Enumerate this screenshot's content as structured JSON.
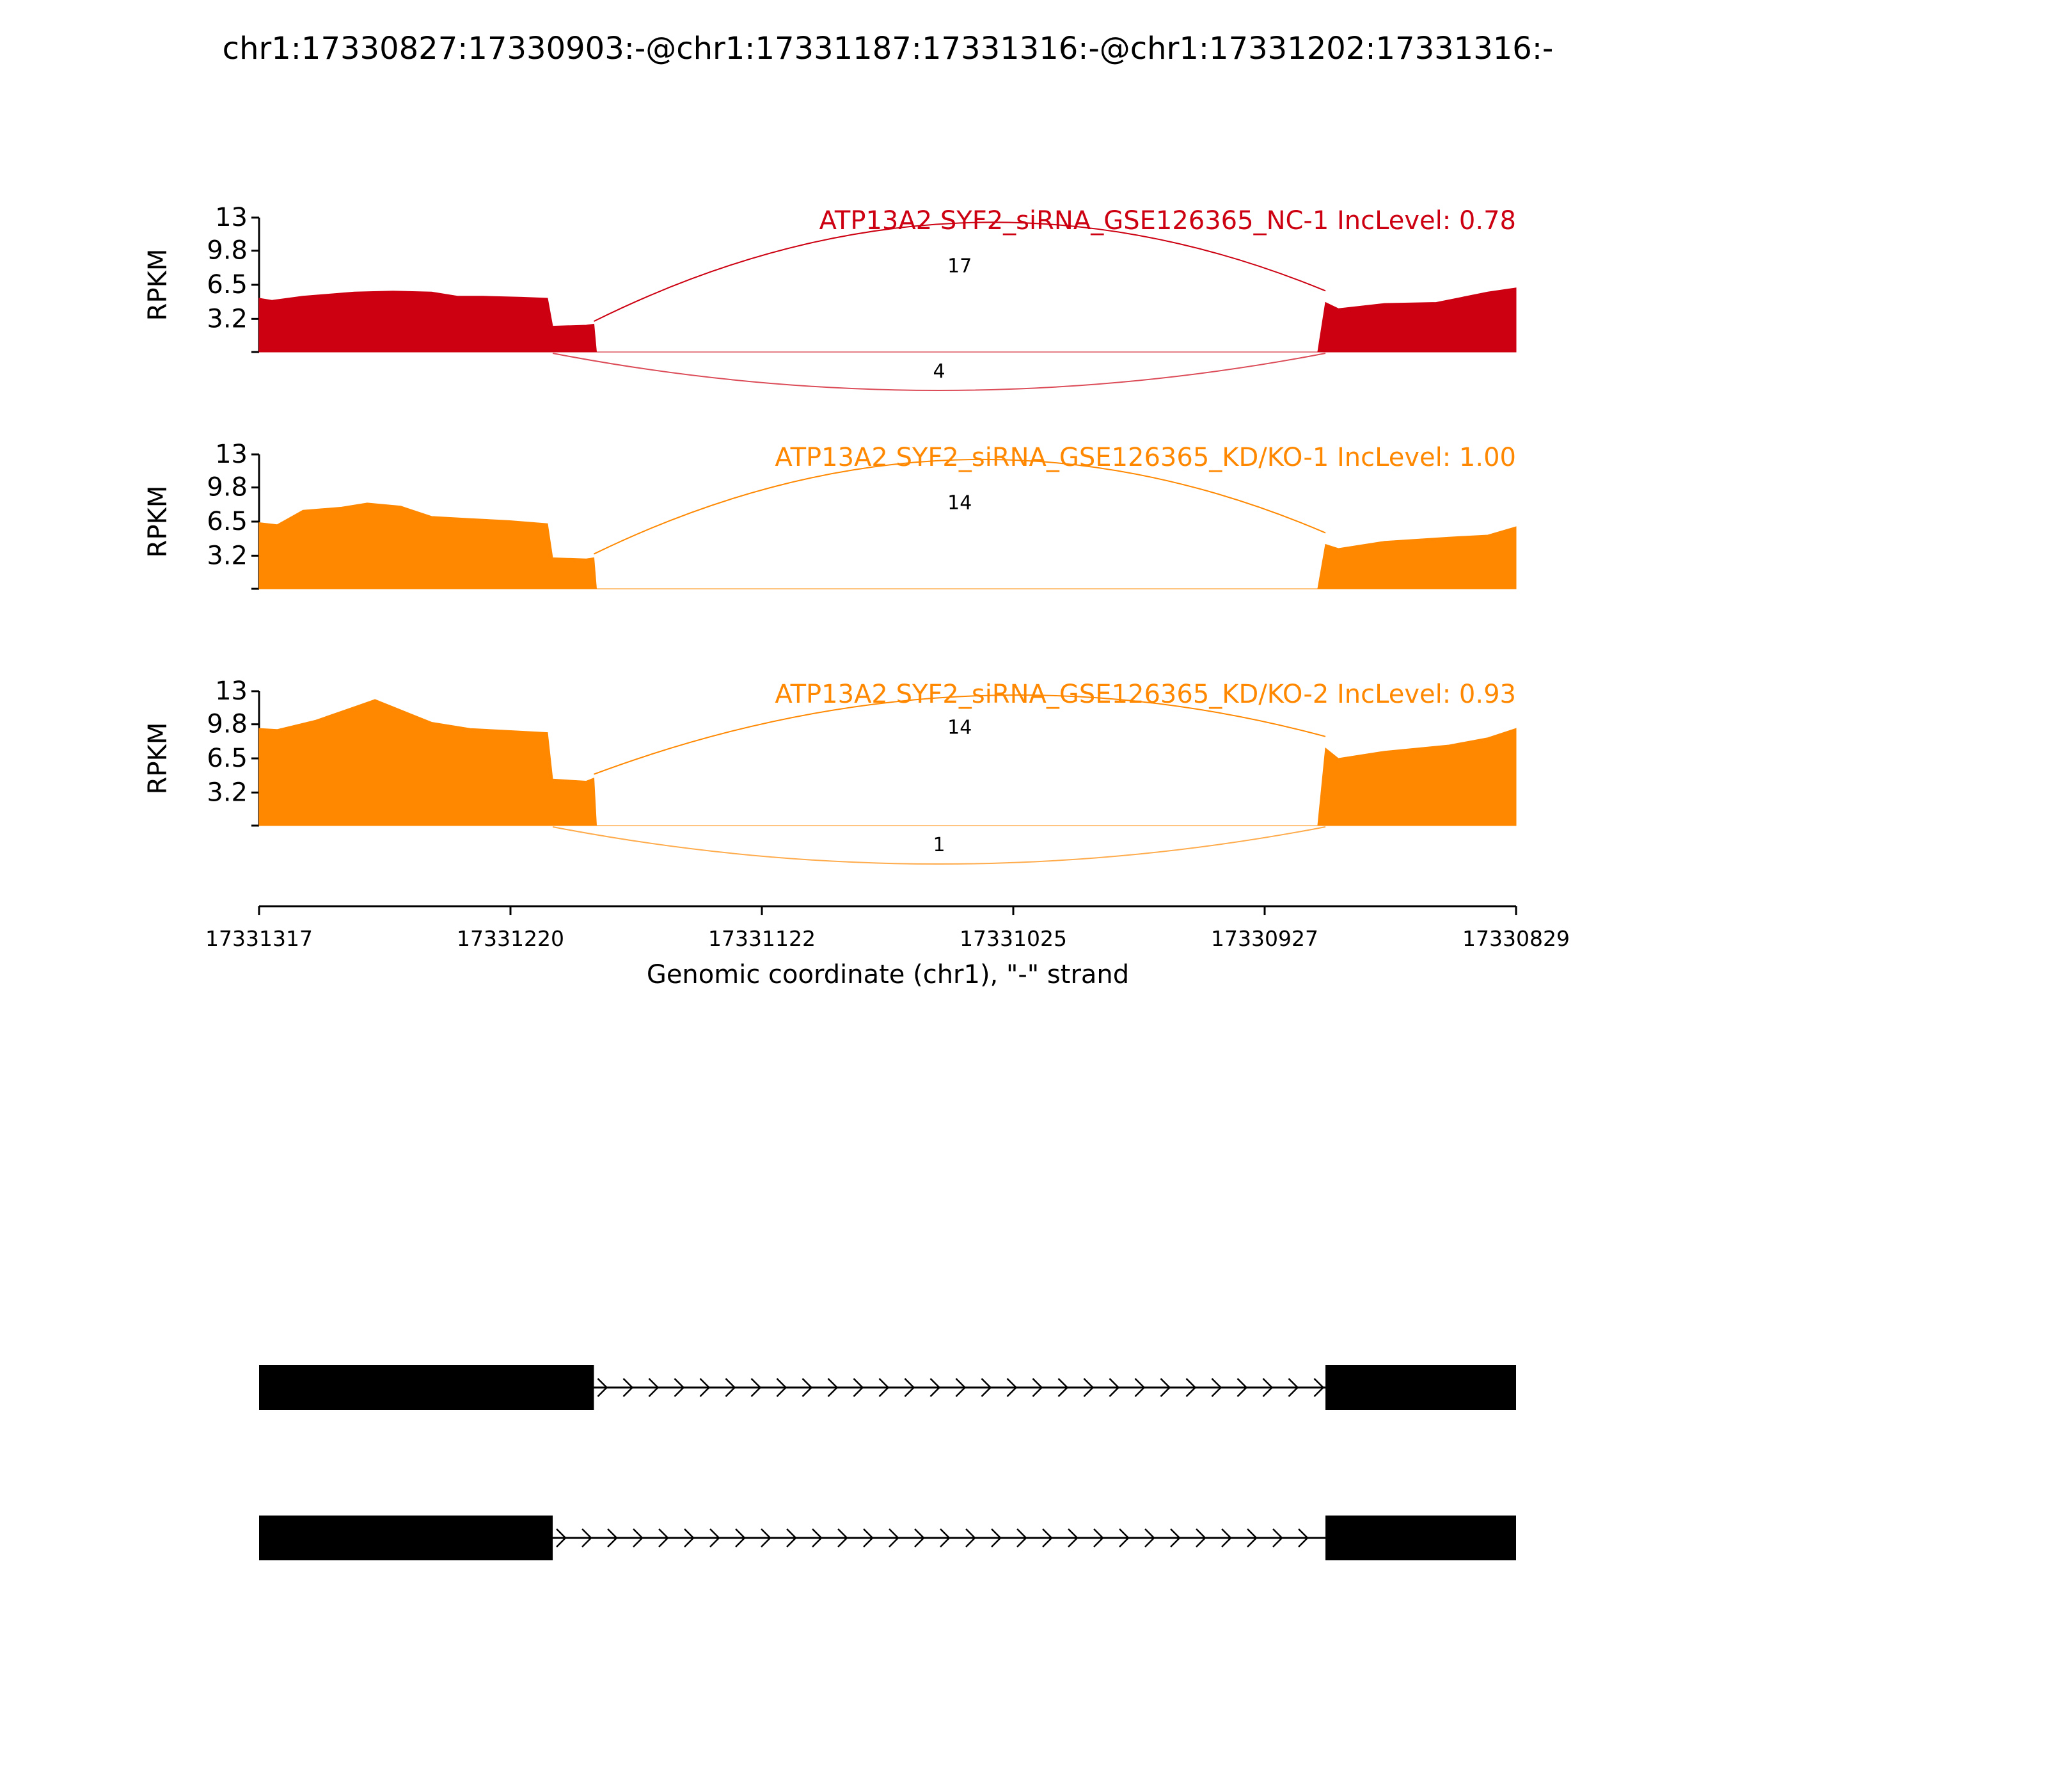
{
  "chart_data": {
    "type": "area",
    "title": "chr1:17330827:17330903:-@chr1:17331187:17331316:-@chr1:17331202:17331316:-",
    "xlabel": "Genomic coordinate (chr1), \"-\" strand",
    "x_ticks": [
      "17331317",
      "17331220",
      "17331122",
      "17331025",
      "17330927",
      "17330829"
    ],
    "x_range": [
      17331317,
      17330829
    ],
    "ylabel": "RPKM",
    "y_ticks": [
      "13",
      "9.8",
      "6.5",
      "3.2"
    ],
    "ylim": [
      0,
      13
    ],
    "panels": [
      {
        "name": "ATP13A2 SYF2_siRNA_GSE126365_NC-1 IncLevel: 0.78",
        "color": "#cc0011",
        "coverage": [
          [
            17331317,
            5.2
          ],
          [
            17331312,
            5.0
          ],
          [
            17331300,
            5.4
          ],
          [
            17331290,
            5.6
          ],
          [
            17331280,
            5.8
          ],
          [
            17331265,
            5.9
          ],
          [
            17331250,
            5.8
          ],
          [
            17331240,
            5.4
          ],
          [
            17331230,
            5.4
          ],
          [
            17331215,
            5.3
          ],
          [
            17331205,
            5.2
          ],
          [
            17331203,
            2.5
          ],
          [
            17331190,
            2.6
          ],
          [
            17331187,
            2.7
          ],
          [
            17331186,
            0
          ],
          [
            17330906,
            0
          ],
          [
            17330903,
            4.8
          ],
          [
            17330898,
            4.2
          ],
          [
            17330880,
            4.7
          ],
          [
            17330860,
            4.8
          ],
          [
            17330840,
            5.8
          ],
          [
            17330829,
            6.2
          ]
        ],
        "junctions": [
          {
            "from": 17331187,
            "to": 17330903,
            "count": "17",
            "side": "above"
          },
          {
            "from": 17331203,
            "to": 17330903,
            "count": "4",
            "side": "below"
          }
        ]
      },
      {
        "name": "ATP13A2 SYF2_siRNA_GSE126365_KD/KO-1 IncLevel: 1.00",
        "color": "#ff8800",
        "coverage": [
          [
            17331317,
            6.4
          ],
          [
            17331310,
            6.2
          ],
          [
            17331300,
            7.6
          ],
          [
            17331285,
            7.9
          ],
          [
            17331275,
            8.3
          ],
          [
            17331262,
            8.0
          ],
          [
            17331250,
            7.0
          ],
          [
            17331235,
            6.8
          ],
          [
            17331220,
            6.6
          ],
          [
            17331205,
            6.3
          ],
          [
            17331203,
            3.0
          ],
          [
            17331190,
            2.9
          ],
          [
            17331187,
            3.0
          ],
          [
            17331186,
            0
          ],
          [
            17330906,
            0
          ],
          [
            17330903,
            4.3
          ],
          [
            17330898,
            3.9
          ],
          [
            17330880,
            4.6
          ],
          [
            17330855,
            5.0
          ],
          [
            17330840,
            5.2
          ],
          [
            17330829,
            6.0
          ]
        ],
        "junctions": [
          {
            "from": 17331187,
            "to": 17330903,
            "count": "14",
            "side": "above"
          }
        ]
      },
      {
        "name": "ATP13A2 SYF2_siRNA_GSE126365_KD/KO-2 IncLevel: 0.93",
        "color": "#ff8800",
        "coverage": [
          [
            17331317,
            9.4
          ],
          [
            17331310,
            9.3
          ],
          [
            17331295,
            10.2
          ],
          [
            17331280,
            11.5
          ],
          [
            17331272,
            12.2
          ],
          [
            17331262,
            11.2
          ],
          [
            17331250,
            10.0
          ],
          [
            17331235,
            9.4
          ],
          [
            17331220,
            9.2
          ],
          [
            17331205,
            9.0
          ],
          [
            17331203,
            4.5
          ],
          [
            17331190,
            4.3
          ],
          [
            17331187,
            4.6
          ],
          [
            17331186,
            0
          ],
          [
            17330906,
            0
          ],
          [
            17330903,
            7.5
          ],
          [
            17330898,
            6.5
          ],
          [
            17330880,
            7.2
          ],
          [
            17330855,
            7.8
          ],
          [
            17330840,
            8.5
          ],
          [
            17330829,
            9.4
          ]
        ],
        "junctions": [
          {
            "from": 17331187,
            "to": 17330903,
            "count": "14",
            "side": "above"
          },
          {
            "from": 17331203,
            "to": 17330903,
            "count": "1",
            "side": "below"
          }
        ]
      }
    ],
    "isoforms": [
      {
        "exons": [
          [
            17331317,
            17331187
          ],
          [
            17330903,
            17330829
          ]
        ],
        "intron_dir": "right"
      },
      {
        "exons": [
          [
            17331317,
            17331203
          ],
          [
            17330903,
            17330829
          ]
        ],
        "intron_dir": "right"
      }
    ]
  }
}
